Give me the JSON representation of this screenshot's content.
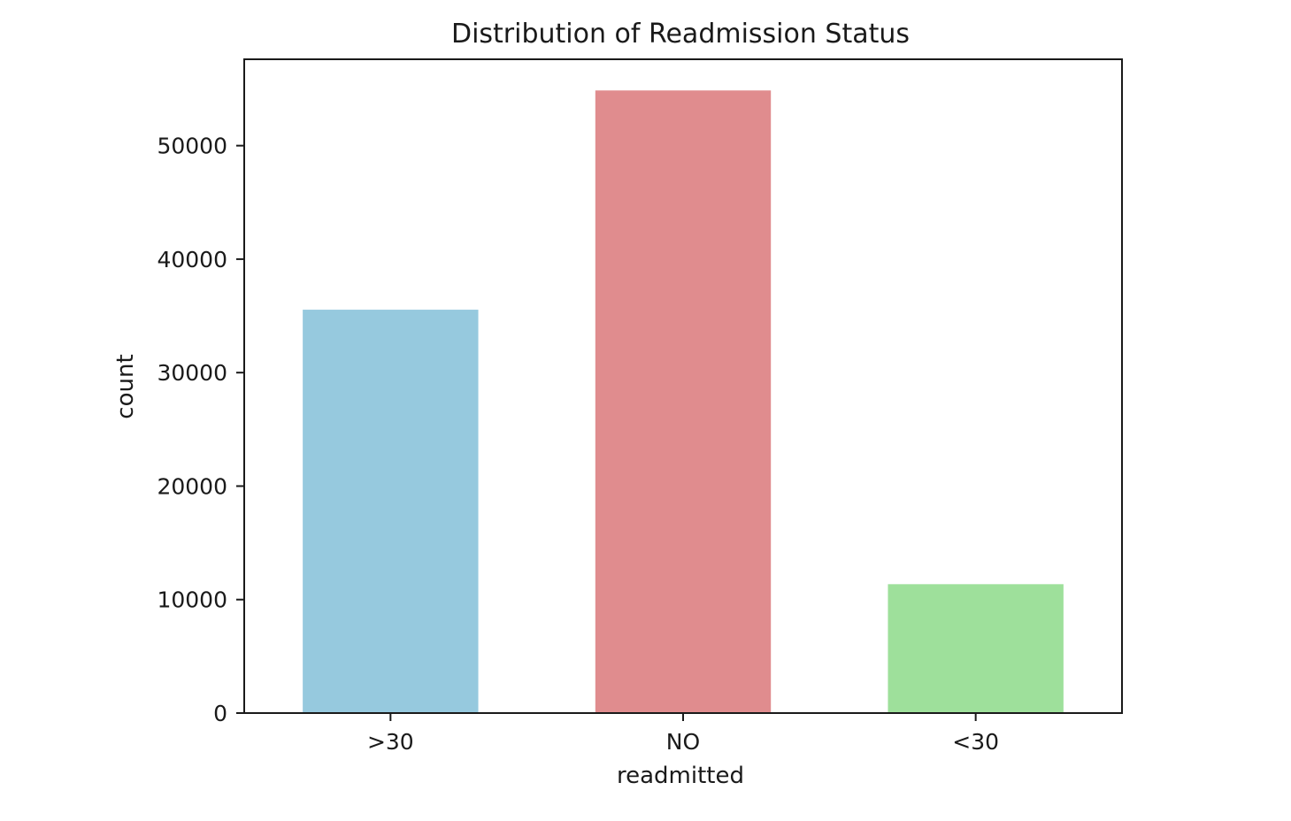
{
  "chart_data": {
    "type": "bar",
    "title": "Distribution of Readmission Status",
    "xlabel": "readmitted",
    "ylabel": "count",
    "categories": [
      ">30",
      "NO",
      "<30"
    ],
    "values": [
      35545,
      54864,
      11357
    ],
    "colors": [
      "#96c9de",
      "#e08c8e",
      "#9ee09b"
    ],
    "ylim": [
      0,
      57612
    ],
    "yticks": [
      0,
      10000,
      20000,
      30000,
      40000,
      50000
    ],
    "ytick_labels": [
      "0",
      "10000",
      "20000",
      "30000",
      "40000",
      "50000"
    ],
    "grid": false,
    "legend": "none"
  }
}
